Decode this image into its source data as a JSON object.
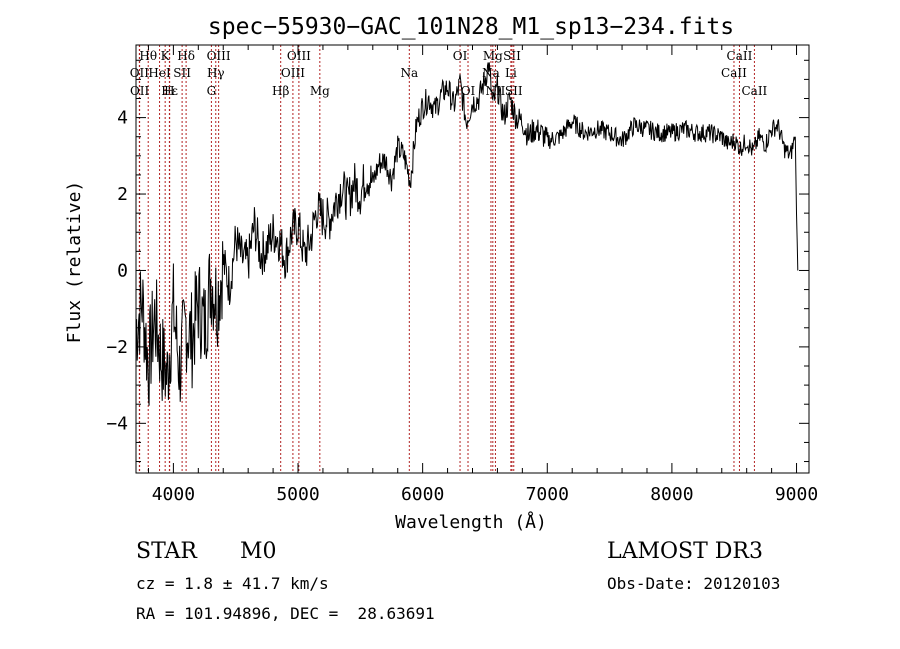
{
  "chart_data": {
    "type": "line",
    "title": "spec−55930−GAC_101N28_M1_sp13−234.fits",
    "xlabel": "Wavelength (Å)",
    "ylabel": "Flux (relative)",
    "xlim": [
      3700,
      9100
    ],
    "ylim": [
      -5.3,
      5.9
    ],
    "x_ticks": [
      4000,
      5000,
      6000,
      7000,
      8000,
      9000
    ],
    "y_ticks": [
      -4,
      -2,
      0,
      2,
      4
    ],
    "grid": false,
    "colors": {
      "spectrum": "#000000",
      "line_marker": "#b22222"
    },
    "series": [
      {
        "name": "spectrum",
        "x": [
          3700,
          3750,
          3800,
          3850,
          3900,
          3950,
          4000,
          4050,
          4100,
          4150,
          4200,
          4250,
          4300,
          4350,
          4400,
          4450,
          4500,
          4550,
          4600,
          4650,
          4700,
          4750,
          4800,
          4850,
          4900,
          4950,
          5000,
          5050,
          5100,
          5150,
          5200,
          5250,
          5300,
          5350,
          5400,
          5450,
          5500,
          5550,
          5600,
          5650,
          5700,
          5750,
          5800,
          5850,
          5890,
          5900,
          5950,
          6000,
          6050,
          6100,
          6150,
          6200,
          6250,
          6300,
          6350,
          6400,
          6450,
          6500,
          6530,
          6563,
          6600,
          6650,
          6700,
          6750,
          6800,
          6850,
          6900,
          6950,
          7000,
          7100,
          7200,
          7300,
          7400,
          7500,
          7600,
          7700,
          7800,
          7900,
          8000,
          8100,
          8200,
          8300,
          8400,
          8450,
          8500,
          8550,
          8600,
          8650,
          8700,
          8750,
          8800,
          8850,
          8900,
          8950,
          8990,
          9000,
          9010
        ],
        "y": [
          -1.5,
          -0.8,
          -2.5,
          -1.2,
          -2.2,
          -2.8,
          -1.0,
          -2.6,
          -1.4,
          -1.8,
          -0.8,
          -1.5,
          -0.2,
          -0.8,
          0.2,
          -0.4,
          0.8,
          0.3,
          0.2,
          1.2,
          0.4,
          0.6,
          1.0,
          0.8,
          0.3,
          1.0,
          1.2,
          0.4,
          0.8,
          1.6,
          1.4,
          1.3,
          1.8,
          2.2,
          1.8,
          2.3,
          2.0,
          2.5,
          2.3,
          2.8,
          2.9,
          2.4,
          3.2,
          3.0,
          2.5,
          2.3,
          3.8,
          4.3,
          4.5,
          4.2,
          4.6,
          4.8,
          4.3,
          4.9,
          3.9,
          4.4,
          4.5,
          5.0,
          5.4,
          4.3,
          4.8,
          4.0,
          4.5,
          4.0,
          3.9,
          3.5,
          3.7,
          3.6,
          3.4,
          3.5,
          3.9,
          3.6,
          3.7,
          3.6,
          3.4,
          3.8,
          3.7,
          3.6,
          3.6,
          3.7,
          3.6,
          3.6,
          3.5,
          3.3,
          3.4,
          3.2,
          3.4,
          3.1,
          3.5,
          3.3,
          3.7,
          3.8,
          3.2,
          3.0,
          3.5,
          1.5,
          0.0
        ]
      }
    ],
    "line_markers": [
      {
        "label": "Hθ",
        "wavelength": 3798,
        "row": 0
      },
      {
        "label": "K",
        "wavelength": 3934,
        "row": 0
      },
      {
        "label": "Hδ",
        "wavelength": 4102,
        "row": 0
      },
      {
        "label": "OIII",
        "wavelength": 4363,
        "row": 0
      },
      {
        "label": "OIII",
        "wavelength": 5007,
        "row": 0
      },
      {
        "label": "OI",
        "wavelength": 6300,
        "row": 0
      },
      {
        "label": "Mg",
        "wavelength": 6563,
        "row": 0
      },
      {
        "label": "SII",
        "wavelength": 6717,
        "row": 0
      },
      {
        "label": "CaII",
        "wavelength": 8542,
        "row": 0
      },
      {
        "label": "OII",
        "wavelength": 3727,
        "row": 1
      },
      {
        "label": "HeI",
        "wavelength": 3889,
        "row": 1
      },
      {
        "label": "SII",
        "wavelength": 4070,
        "row": 1
      },
      {
        "label": "Hγ",
        "wavelength": 4340,
        "row": 1
      },
      {
        "label": "OIII",
        "wavelength": 4959,
        "row": 1
      },
      {
        "label": "Na",
        "wavelength": 5893,
        "row": 1
      },
      {
        "label": "Na",
        "wavelength": 6548,
        "row": 1
      },
      {
        "label": "Li",
        "wavelength": 6708,
        "row": 1
      },
      {
        "label": "CaII",
        "wavelength": 8498,
        "row": 1
      },
      {
        "label": "OII",
        "wavelength": 3729,
        "row": 2
      },
      {
        "label": "Hε",
        "wavelength": 3970,
        "row": 2
      },
      {
        "label": "H",
        "wavelength": 3968,
        "row": 2
      },
      {
        "label": "G",
        "wavelength": 4305,
        "row": 2
      },
      {
        "label": "Hβ",
        "wavelength": 4861,
        "row": 2
      },
      {
        "label": "Mg",
        "wavelength": 5175,
        "row": 2
      },
      {
        "label": "OI",
        "wavelength": 6364,
        "row": 2
      },
      {
        "label": "NII",
        "wavelength": 6584,
        "row": 2
      },
      {
        "label": "SII",
        "wavelength": 6731,
        "row": 2
      },
      {
        "label": "CaII",
        "wavelength": 8662,
        "row": 2
      }
    ]
  },
  "info": {
    "object_class": "STAR",
    "subclass": "M0",
    "survey": "LAMOST DR3",
    "redshift": "cz = 1.8 ± 41.7 km/s",
    "obs_date": "Obs-Date: 20120103",
    "coords": "RA = 101.94896, DEC =  28.63691"
  }
}
